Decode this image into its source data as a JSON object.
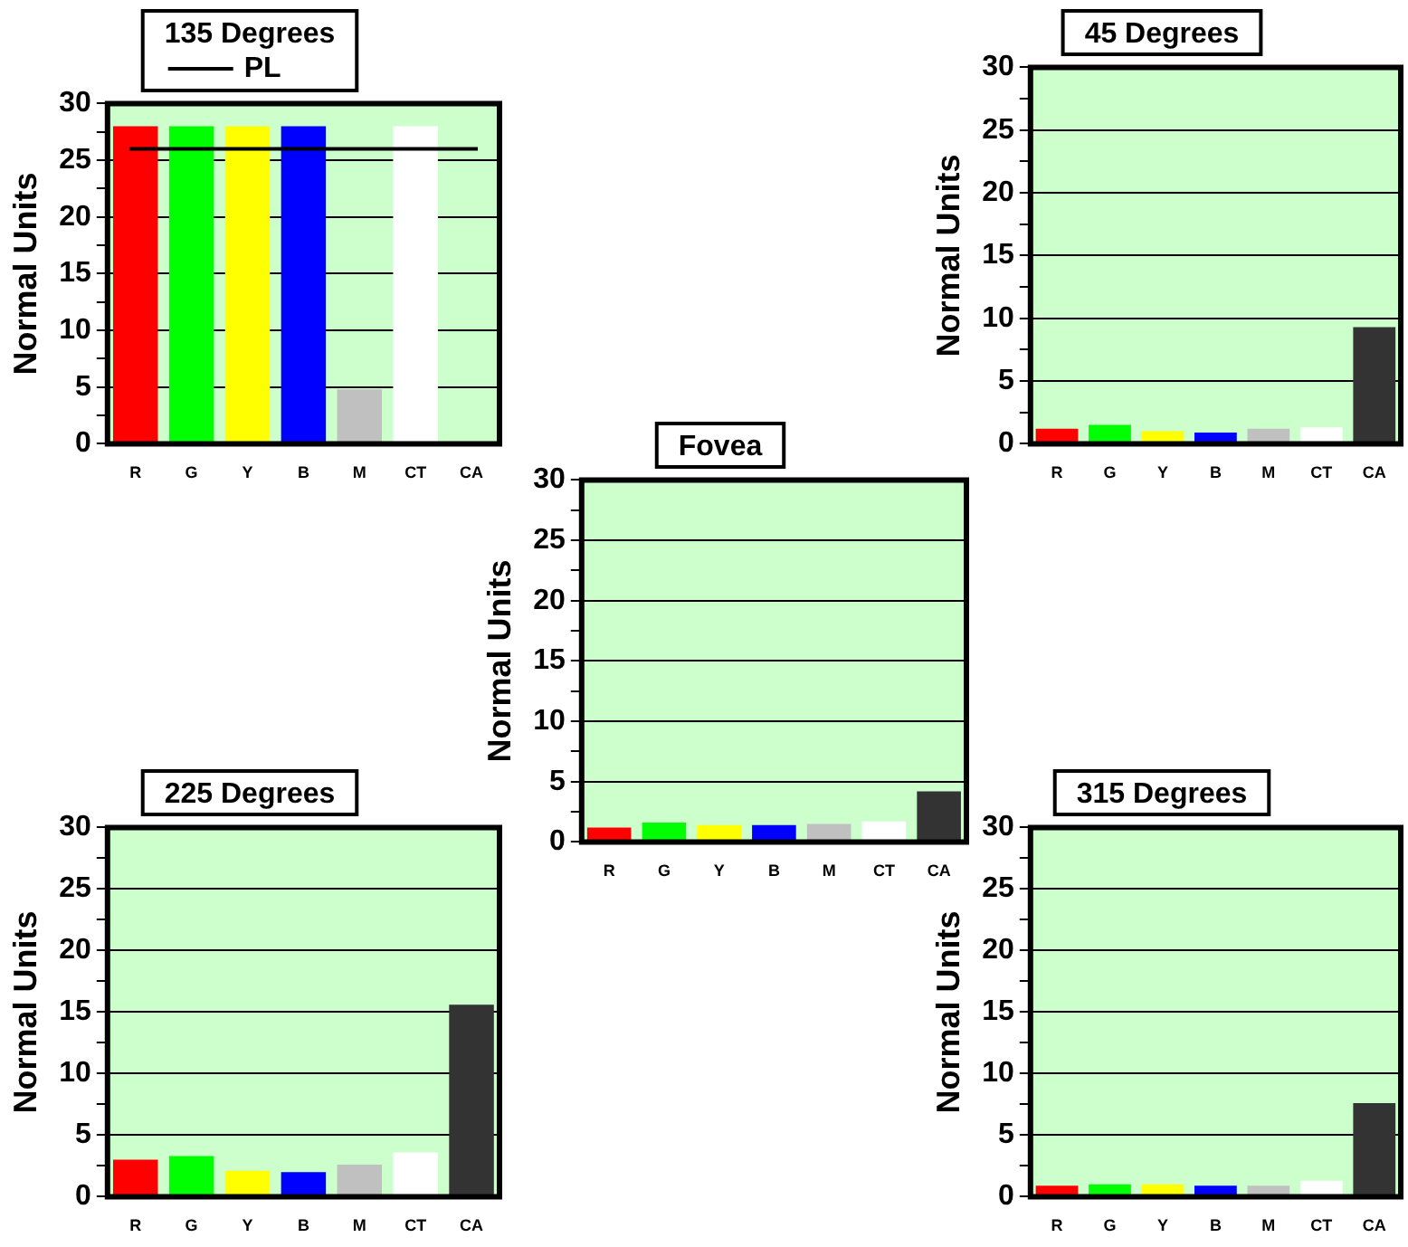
{
  "chart_data": [
    {
      "type": "bar",
      "title": "135 Degrees",
      "ylabel": "Normal Units",
      "categories": [
        "R",
        "G",
        "Y",
        "B",
        "M",
        "CT",
        "CA"
      ],
      "values": [
        28,
        28,
        28,
        28,
        4.8,
        28,
        null
      ],
      "colors": [
        "#ff0000",
        "#00ff00",
        "#ffff00",
        "#0000ff",
        "#c0c0c0",
        "#ffffff",
        "#333333"
      ],
      "ylim": [
        0,
        30
      ],
      "yticks": [
        0,
        {
          "value": 2.5,
          "label": null
        },
        5,
        {
          "value": 7.5,
          "label": null
        },
        10,
        {
          "value": 12.5,
          "label": null
        },
        15,
        {
          "value": 17.5,
          "label": null
        },
        20,
        {
          "value": 22.5,
          "label": null
        },
        25,
        {
          "value": 27.5,
          "label": null
        },
        30
      ],
      "grid": "y",
      "ref_lines": [
        {
          "axis": "y",
          "value": 26,
          "label": "PL",
          "color": "#000000"
        }
      ]
    },
    {
      "type": "bar",
      "title": "45 Degrees",
      "ylabel": "Normal Units",
      "categories": [
        "R",
        "G",
        "Y",
        "B",
        "M",
        "CT",
        "CA"
      ],
      "values": [
        1.2,
        1.5,
        1.0,
        0.9,
        1.2,
        1.3,
        9.3
      ],
      "colors": [
        "#ff0000",
        "#00ff00",
        "#ffff00",
        "#0000ff",
        "#c0c0c0",
        "#ffffff",
        "#333333"
      ],
      "ylim": [
        0,
        30
      ],
      "yticks": [
        0,
        {
          "value": 2.5,
          "label": null
        },
        5,
        {
          "value": 7.5,
          "label": null
        },
        10,
        {
          "value": 12.5,
          "label": null
        },
        15,
        {
          "value": 17.5,
          "label": null
        },
        20,
        {
          "value": 22.5,
          "label": null
        },
        25,
        {
          "value": 27.5,
          "label": null
        },
        30
      ],
      "grid": "y"
    },
    {
      "type": "bar",
      "title": "Fovea",
      "ylabel": "Normal Units",
      "categories": [
        "R",
        "G",
        "Y",
        "B",
        "M",
        "CT",
        "CA"
      ],
      "values": [
        1.2,
        1.6,
        1.4,
        1.4,
        1.5,
        1.7,
        4.2
      ],
      "colors": [
        "#ff0000",
        "#00ff00",
        "#ffff00",
        "#0000ff",
        "#c0c0c0",
        "#ffffff",
        "#333333"
      ],
      "ylim": [
        0,
        30
      ],
      "yticks": [
        0,
        {
          "value": 2.5,
          "label": null
        },
        5,
        {
          "value": 7.5,
          "label": null
        },
        10,
        {
          "value": 12.5,
          "label": null
        },
        15,
        {
          "value": 17.5,
          "label": null
        },
        20,
        {
          "value": 22.5,
          "label": null
        },
        25,
        {
          "value": 27.5,
          "label": null
        },
        30
      ],
      "grid": "y"
    },
    {
      "type": "bar",
      "title": "225 Degrees",
      "ylabel": "Normal Units",
      "categories": [
        "R",
        "G",
        "Y",
        "B",
        "M",
        "CT",
        "CA"
      ],
      "values": [
        3.0,
        3.3,
        2.1,
        2.0,
        2.6,
        3.6,
        15.6
      ],
      "colors": [
        "#ff0000",
        "#00ff00",
        "#ffff00",
        "#0000ff",
        "#c0c0c0",
        "#ffffff",
        "#333333"
      ],
      "ylim": [
        0,
        30
      ],
      "yticks": [
        0,
        {
          "value": 2.5,
          "label": null
        },
        5,
        {
          "value": 7.5,
          "label": null
        },
        10,
        {
          "value": 12.5,
          "label": null
        },
        15,
        {
          "value": 17.5,
          "label": null
        },
        20,
        {
          "value": 22.5,
          "label": null
        },
        25,
        {
          "value": 27.5,
          "label": null
        },
        30
      ],
      "grid": "y"
    },
    {
      "type": "bar",
      "title": "315 Degrees",
      "ylabel": "Normal Units",
      "categories": [
        "R",
        "G",
        "Y",
        "B",
        "M",
        "CT",
        "CA"
      ],
      "values": [
        0.9,
        1.0,
        1.0,
        0.9,
        0.9,
        1.3,
        7.6
      ],
      "colors": [
        "#ff0000",
        "#00ff00",
        "#ffff00",
        "#0000ff",
        "#c0c0c0",
        "#ffffff",
        "#333333"
      ],
      "ylim": [
        0,
        30
      ],
      "yticks": [
        0,
        {
          "value": 2.5,
          "label": null
        },
        5,
        {
          "value": 7.5,
          "label": null
        },
        10,
        {
          "value": 12.5,
          "label": null
        },
        15,
        {
          "value": 17.5,
          "label": null
        },
        20,
        {
          "value": 22.5,
          "label": null
        },
        25,
        {
          "value": 27.5,
          "label": null
        },
        30
      ],
      "grid": "y"
    }
  ]
}
